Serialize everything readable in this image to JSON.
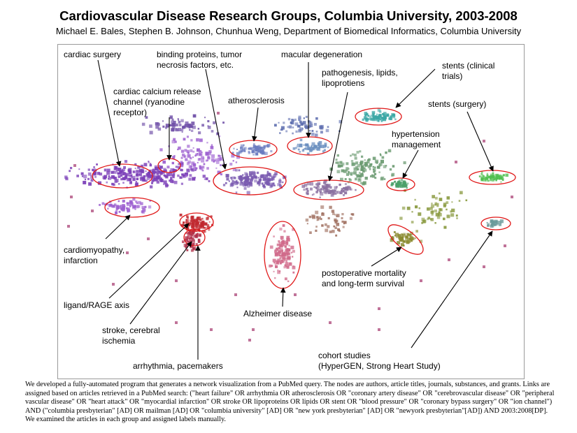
{
  "header": {
    "title": "Cardiovascular Disease Research Groups, Columbia University, 2003-2008",
    "authors": "Michael E. Bales, Stephen B. Johnson, Chunhua Weng, Department of Biomedical Informatics, Columbia University"
  },
  "labels": {
    "cardiac_surgery": [
      "cardiac surgery"
    ],
    "binding_proteins": [
      "binding proteins, tumor",
      "necrosis factors, etc."
    ],
    "macular_degeneration": [
      "macular degeneration"
    ],
    "stents_clinical": [
      "stents (clinical",
      "trials)"
    ],
    "pathogenesis": [
      "pathogenesis, lipids,",
      "lipoprotiens"
    ],
    "calcium_channel": [
      "cardiac calcium release",
      "channel (ryanodine",
      "receptor)"
    ],
    "atherosclerosis": [
      "atherosclerosis"
    ],
    "stents_surgery": [
      "stents (surgery)"
    ],
    "hypertension": [
      "hypertension",
      "management"
    ],
    "cardiomyopathy": [
      "cardiomyopathy,",
      "infarction"
    ],
    "postoperative": [
      "postoperative mortality",
      "and long-term survival"
    ],
    "ligand_rage": [
      "ligand/RAGE axis"
    ],
    "alzheimer": [
      "Alzheimer disease"
    ],
    "stroke": [
      "stroke, cerebral",
      "ischemia"
    ],
    "cohort": [
      "cohort studies",
      "(HyperGEN, Strong Heart Study)"
    ],
    "arrhythmia": [
      "arrhythmia, pacemakers"
    ]
  },
  "caption": "We developed a fully-automated program that generates a network visualization from a PubMed query. The nodes are authors, article titles, journals, substances, and grants. Links are assigned based on articles retrieved in a PubMed search: (\"heart failure\" OR arrhythmia OR atherosclerosis OR \"coronary artery disease\" OR \"cerebrovascular disease\" OR \"peripheral vascular disease\" OR \"heart attack\" OR \"myocardial infarction\" OR stroke OR lipoproteins OR lipids OR stent OR \"blood pressure\" OR \"coronary bypass surgery\" OR \"ion channel\") AND (\"columbia presbyterian\" [AD] OR mailman [AD] OR \"columbia university\" [AD] OR \"new york presbyterian\" [AD] OR \"newyork presbyterian\"[AD]) AND 2003:2008[DP]. We examined the articles in each group and assigned labels manually.",
  "colors": {
    "purple": "#7b3fb8",
    "violet": "#9c5fd0",
    "red": "#c0282f",
    "pink": "#d06a8a",
    "teal": "#3aa7a5",
    "green": "#4fbf4f",
    "olive": "#8a8a30",
    "ellipse": "#e01818"
  }
}
